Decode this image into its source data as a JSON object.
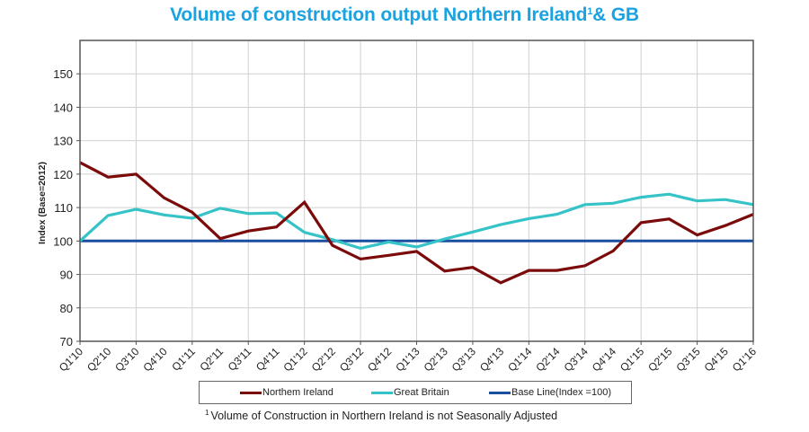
{
  "chart_data": {
    "type": "line",
    "title": "Volume of construction output Northern Ireland",
    "title_superscript": "1",
    "title_suffix": "& GB",
    "xlabel": "",
    "ylabel": "Index (Base=2012)",
    "ylim": [
      70,
      160
    ],
    "yticks": [
      70,
      80,
      90,
      100,
      110,
      120,
      130,
      140,
      150
    ],
    "grid": true,
    "legend_position": "bottom",
    "categories": [
      "Q1'10",
      "Q2'10",
      "Q3'10",
      "Q4'10",
      "Q1'11",
      "Q2'11",
      "Q3'11",
      "Q4'11",
      "Q1'12",
      "Q2'12",
      "Q3'12",
      "Q4'12",
      "Q1'13",
      "Q2'13",
      "Q3'13",
      "Q4'13",
      "Q1'14",
      "Q2'14",
      "Q3'14",
      "Q4'14",
      "Q1'15",
      "Q2'15",
      "Q3'15",
      "Q4'15",
      "Q1'16"
    ],
    "series": [
      {
        "name": "Northern Ireland",
        "color": "#7b0a0a",
        "values": [
          123.5,
          119.1,
          120.0,
          112.9,
          108.6,
          100.7,
          103.0,
          104.2,
          111.6,
          98.7,
          94.6,
          95.7,
          96.9,
          91.0,
          92.1,
          87.5,
          91.2,
          91.2,
          92.6,
          97.0,
          105.5,
          106.6,
          101.8,
          104.6,
          108.0
        ]
      },
      {
        "name": "Great Britain",
        "color": "#36c3c7",
        "values": [
          100.0,
          107.6,
          109.5,
          107.8,
          106.8,
          109.8,
          108.2,
          108.4,
          102.6,
          100.4,
          97.8,
          99.7,
          98.2,
          100.6,
          102.7,
          104.9,
          106.7,
          108.0,
          110.9,
          111.3,
          113.1,
          114.0,
          112.0,
          112.4,
          110.9
        ]
      },
      {
        "name": "Base Line(Index =100)",
        "color": "#1a4fa0",
        "values": [
          100,
          100,
          100,
          100,
          100,
          100,
          100,
          100,
          100,
          100,
          100,
          100,
          100,
          100,
          100,
          100,
          100,
          100,
          100,
          100,
          100,
          100,
          100,
          100,
          100
        ]
      }
    ],
    "legend": [
      "Northern Ireland",
      "Great Britain",
      "Base Line(Index =100)"
    ],
    "legend_display": [
      "Northem Ireland",
      "Great Britain",
      "Base Line(Index =100)"
    ],
    "footnote_marker": "1",
    "footnote": "Volume of Construction  in Northern Ireland is not Seasonally Adjusted"
  },
  "colors": {
    "title": "#1aa3e0",
    "grid": "#d0d0d0",
    "axis": "#555555"
  }
}
